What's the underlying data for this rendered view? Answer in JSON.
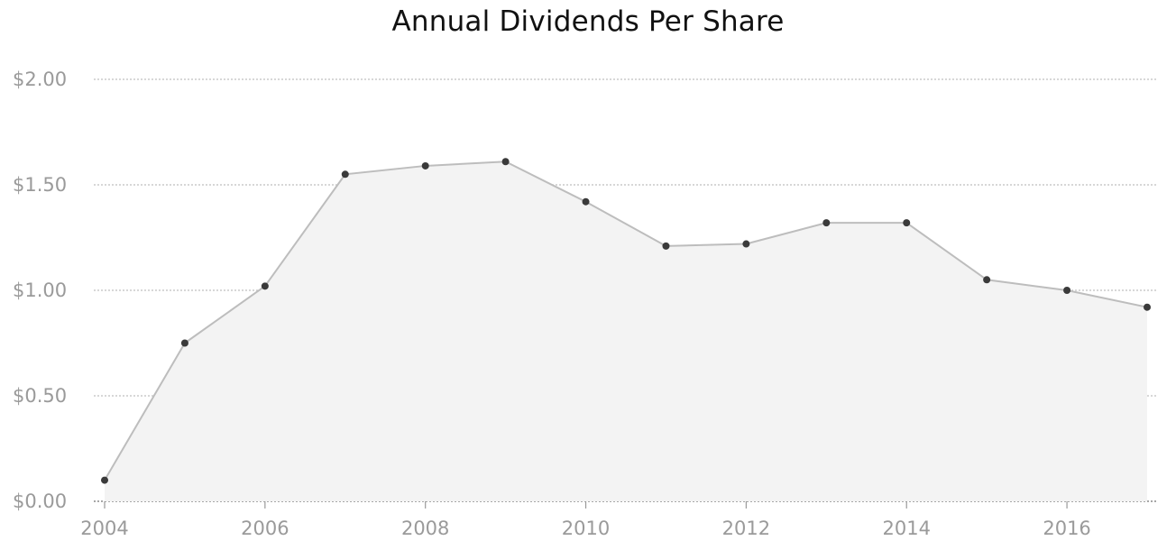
{
  "chart_data": {
    "type": "area",
    "title": "Annual Dividends Per Share",
    "xlabel": "",
    "ylabel": "",
    "x": [
      2004,
      2005,
      2006,
      2007,
      2008,
      2009,
      2010,
      2011,
      2012,
      2013,
      2014,
      2015,
      2016,
      2017
    ],
    "values": [
      0.1,
      0.75,
      1.02,
      1.55,
      1.59,
      1.61,
      1.42,
      1.21,
      1.22,
      1.32,
      1.32,
      1.05,
      1.0,
      0.92
    ],
    "xlim": [
      2004,
      2017
    ],
    "ylim": [
      0,
      2.0
    ],
    "x_ticks": [
      "2004",
      "2006",
      "2008",
      "2010",
      "2012",
      "2014",
      "2016"
    ],
    "y_ticks": [
      "$0.00",
      "$0.50",
      "$1.00",
      "$1.50",
      "$2.00"
    ],
    "grid": true,
    "legend": "none",
    "colors": {
      "line": "#bdbdbd",
      "fill": "#f3f3f3",
      "marker": "#3a3a3a",
      "grid": "#bfbfbf",
      "tick_text": "#9a9a9a",
      "title": "#111111"
    }
  }
}
